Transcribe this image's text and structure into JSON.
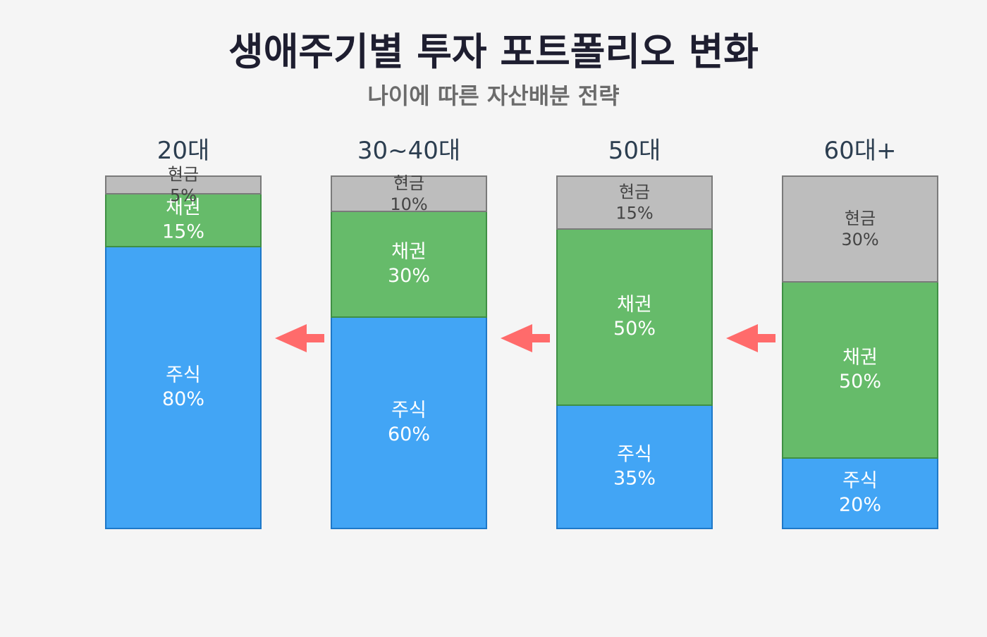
{
  "colors": {
    "background": "#f5f5f5",
    "stock": "#42a5f5",
    "stock_border": "#1e78c8",
    "bond": "#66bb6a",
    "bond_border": "#3f8f44",
    "cash": "#bdbdbd",
    "cash_border": "#7a7a7a",
    "arrow": "#ff6b6b"
  },
  "chart_data": {
    "type": "bar",
    "stacked": true,
    "title": "생애주기별 투자 포트폴리오 변화",
    "subtitle": "나이에 따른 자산배분 전략",
    "categories": [
      "20대",
      "30~40대",
      "50대",
      "60대+"
    ],
    "unit": "%",
    "ylim": [
      0,
      100
    ],
    "grid": false,
    "series": [
      {
        "name": "주식",
        "values": [
          80,
          60,
          35,
          20
        ],
        "color": "#42a5f5"
      },
      {
        "name": "채권",
        "values": [
          15,
          30,
          50,
          50
        ],
        "color": "#66bb6a"
      },
      {
        "name": "현금",
        "values": [
          5,
          10,
          15,
          30
        ],
        "color": "#bdbdbd"
      }
    ],
    "arrows": {
      "direction": "left",
      "count": 3
    }
  }
}
